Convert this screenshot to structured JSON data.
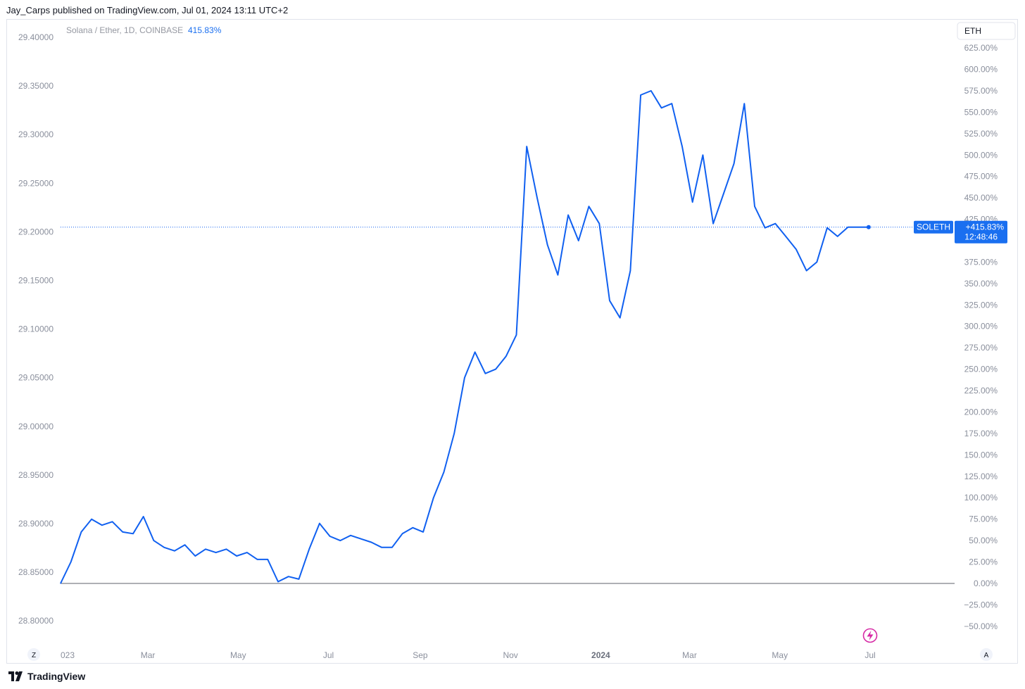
{
  "publish_line": "Jay_Carps published on TradingView.com, Jul 01, 2024 13:11 UTC+2",
  "brand": "TradingView",
  "legend": {
    "symbol_line": "Solana / Ether, 1D, COINBASE",
    "change": "415.83%"
  },
  "currency_badge": "ETH",
  "price_tag": {
    "symbol": "SOLETH",
    "change": "+415.83%",
    "countdown": "12:48:46"
  },
  "left_axis_labels": [
    "29.40000",
    "29.35000",
    "29.30000",
    "29.25000",
    "29.20000",
    "29.15000",
    "29.10000",
    "29.05000",
    "29.00000",
    "28.95000",
    "28.90000",
    "28.85000",
    "28.80000"
  ],
  "right_axis_labels": [
    "625.00%",
    "600.00%",
    "575.00%",
    "550.00%",
    "525.00%",
    "500.00%",
    "475.00%",
    "450.00%",
    "425.00%",
    "375.00%",
    "350.00%",
    "325.00%",
    "300.00%",
    "275.00%",
    "250.00%",
    "225.00%",
    "200.00%",
    "175.00%",
    "150.00%",
    "125.00%",
    "100.00%",
    "75.00%",
    "50.00%",
    "25.00%",
    "0.00%",
    "−25.00%",
    "−50.00%"
  ],
  "time_axis_labels": [
    "023",
    "Mar",
    "May",
    "Jul",
    "Sep",
    "Nov",
    "2024",
    "Mar",
    "May",
    "Jul"
  ],
  "controls": {
    "left_button": "Z",
    "right_button": "A"
  },
  "colors": {
    "line": "#1060f0",
    "tag_bg": "#1a6ff0",
    "axis_text": "#8a8f9c"
  },
  "chart_data": {
    "type": "line",
    "title": "Solana / Ether, 1D, COINBASE",
    "scale": "percent",
    "ylim": [
      -60,
      630
    ],
    "baseline": 0,
    "last_value": 415.83,
    "x": [
      "2023-01-01",
      "2023-01-08",
      "2023-01-15",
      "2023-01-22",
      "2023-01-29",
      "2023-02-05",
      "2023-02-12",
      "2023-02-19",
      "2023-02-26",
      "2023-03-05",
      "2023-03-12",
      "2023-03-19",
      "2023-03-26",
      "2023-04-02",
      "2023-04-09",
      "2023-04-16",
      "2023-04-23",
      "2023-04-30",
      "2023-05-07",
      "2023-05-14",
      "2023-05-21",
      "2023-05-28",
      "2023-06-04",
      "2023-06-11",
      "2023-06-18",
      "2023-06-25",
      "2023-07-02",
      "2023-07-09",
      "2023-07-16",
      "2023-07-23",
      "2023-07-30",
      "2023-08-06",
      "2023-08-13",
      "2023-08-20",
      "2023-08-27",
      "2023-09-03",
      "2023-09-10",
      "2023-09-17",
      "2023-09-24",
      "2023-10-01",
      "2023-10-08",
      "2023-10-15",
      "2023-10-22",
      "2023-10-29",
      "2023-11-05",
      "2023-11-12",
      "2023-11-19",
      "2023-11-26",
      "2023-12-03",
      "2023-12-10",
      "2023-12-17",
      "2023-12-24",
      "2023-12-31",
      "2024-01-07",
      "2024-01-14",
      "2024-01-21",
      "2024-01-28",
      "2024-02-04",
      "2024-02-11",
      "2024-02-18",
      "2024-02-25",
      "2024-03-03",
      "2024-03-10",
      "2024-03-17",
      "2024-03-24",
      "2024-03-31",
      "2024-04-07",
      "2024-04-14",
      "2024-04-21",
      "2024-04-28",
      "2024-05-05",
      "2024-05-12",
      "2024-05-19",
      "2024-05-26",
      "2024-06-02",
      "2024-06-09",
      "2024-06-16",
      "2024-06-23",
      "2024-06-30"
    ],
    "series": [
      {
        "values": [
          0,
          25,
          60,
          75,
          68,
          72,
          60,
          58,
          78,
          50,
          42,
          38,
          45,
          32,
          40,
          36,
          40,
          32,
          36,
          28,
          28,
          2,
          8,
          5,
          40,
          70,
          55,
          50,
          56,
          52,
          48,
          42,
          42,
          58,
          65,
          60,
          100,
          130,
          175,
          240,
          270,
          245,
          250,
          265,
          290,
          510,
          450,
          395,
          360,
          430,
          400,
          440,
          420,
          330,
          310,
          365,
          570,
          575,
          555,
          560,
          510,
          445,
          500,
          420,
          455,
          490,
          560,
          440,
          415,
          420,
          405,
          390,
          365,
          375,
          415,
          405,
          415.83,
          415.83,
          415.83
        ]
      }
    ]
  }
}
